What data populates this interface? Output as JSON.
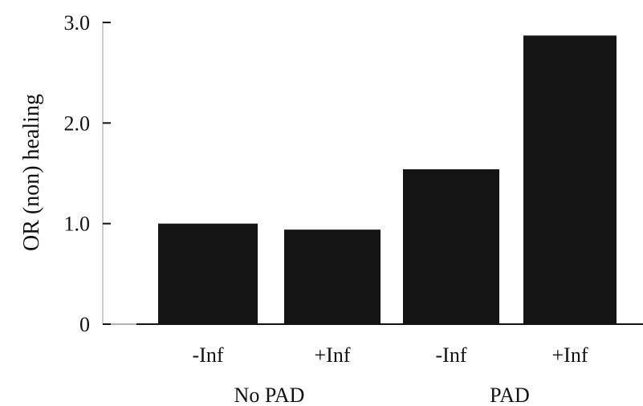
{
  "chart_data": {
    "type": "bar",
    "ylabel": "OR (non) healing",
    "xlabel": "",
    "ylim": [
      0,
      3.0
    ],
    "yticks": [
      {
        "value": 0,
        "label": "0"
      },
      {
        "value": 1.0,
        "label": "1.0"
      },
      {
        "value": 2.0,
        "label": "2.0"
      },
      {
        "value": 3.0,
        "label": "3.0"
      }
    ],
    "categories": [
      "-Inf",
      "+Inf",
      "-Inf",
      "+Inf"
    ],
    "groups": [
      {
        "label": "No PAD",
        "categories": [
          0,
          1
        ]
      },
      {
        "label": "PAD",
        "categories": [
          2,
          3
        ]
      }
    ],
    "values": [
      1.0,
      0.94,
      1.54,
      2.87
    ],
    "bar_color": "#141414",
    "grid": false
  }
}
